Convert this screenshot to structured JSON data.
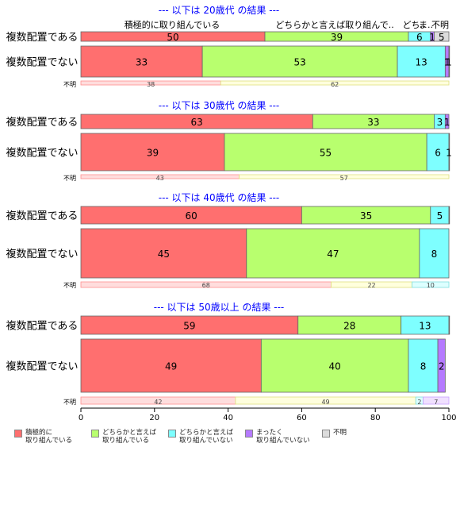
{
  "chart_data": {
    "type": "bar",
    "orientation": "horizontal",
    "stacked": true,
    "xlim": [
      0,
      100
    ],
    "x_ticks": [
      "0",
      "20",
      "40",
      "60",
      "80",
      "100"
    ],
    "legend_position": "bottom",
    "series": [
      {
        "name": "積極的に\n取り組んでいる",
        "color": "#FF6F6F"
      },
      {
        "name": "どちらかと言えば\n取り組んでいる",
        "color": "#B8FF6E"
      },
      {
        "name": "どちらかと言えば\n取り組んでいない",
        "color": "#7EFFFF"
      },
      {
        "name": "まったく\n取り組んでいない",
        "color": "#B57AFF"
      },
      {
        "name": "不明",
        "color": "#DCDCDC"
      }
    ],
    "panels": [
      {
        "title": "--- 以下は 20歳代 の結果 ---",
        "header_labels": [
          "積極的に取り組んでいる",
          "どちらかと言えば取り組んで..",
          "どち..",
          "ま..",
          "不明"
        ],
        "rows": [
          {
            "label": "複数配置である",
            "values": [
              50,
              39,
              6,
              1,
              5
            ],
            "labels": [
              "50",
              "39",
              "6",
              "1",
              "5"
            ]
          },
          {
            "label": "複数配置でない",
            "values": [
              33,
              53,
              13,
              1,
              1
            ],
            "labels": [
              "33",
              "53",
              "13",
              "1",
              "1"
            ]
          }
        ],
        "unknown": {
          "label": "不明",
          "values": [
            38,
            62
          ],
          "labels": [
            "38",
            "62"
          ]
        }
      },
      {
        "title": "--- 以下は 30歳代 の結果 ---",
        "rows": [
          {
            "label": "複数配置である",
            "values": [
              63,
              33,
              3,
              1,
              0
            ],
            "labels": [
              "63",
              "33",
              "3",
              "1",
              ""
            ]
          },
          {
            "label": "複数配置でない",
            "values": [
              39,
              55,
              6,
              1,
              0
            ],
            "labels": [
              "39",
              "55",
              "6",
              "1",
              ""
            ]
          }
        ],
        "unknown": {
          "label": "不明",
          "values": [
            43,
            57
          ],
          "labels": [
            "43",
            "57"
          ]
        }
      },
      {
        "title": "--- 以下は 40歳代 の結果 ---",
        "rows": [
          {
            "label": "複数配置である",
            "values": [
              60,
              35,
              5,
              0.5,
              0
            ],
            "labels": [
              "60",
              "35",
              "5",
              "",
              ""
            ]
          },
          {
            "label": "複数配置でない",
            "values": [
              45,
              47,
              8,
              0,
              0
            ],
            "labels": [
              "45",
              "47",
              "8",
              "",
              ""
            ]
          }
        ],
        "unknown": {
          "label": "不明",
          "values": [
            68,
            22,
            10
          ],
          "labels": [
            "68",
            "22",
            "10"
          ]
        }
      },
      {
        "title": "--- 以下は 50歳以上 の結果 ---",
        "rows": [
          {
            "label": "複数配置である",
            "values": [
              59,
              28,
              13,
              0.5,
              0
            ],
            "labels": [
              "59",
              "28",
              "13",
              "",
              ""
            ]
          },
          {
            "label": "複数配置でない",
            "values": [
              49,
              40,
              8,
              2,
              0
            ],
            "labels": [
              "49",
              "40",
              "8",
              "2",
              ""
            ]
          }
        ],
        "unknown": {
          "label": "不明",
          "values": [
            42,
            49,
            2,
            7
          ],
          "labels": [
            "42",
            "49",
            "2",
            "7"
          ]
        }
      }
    ]
  },
  "colors": {
    "title": "#0000FF",
    "unknown_fills": [
      "#FFDDDD",
      "#FFFFDD",
      "#DDFFFF",
      "#F0E0FF"
    ],
    "unknown_strokes": [
      "#FF8F8F",
      "#E0E080",
      "#80E0E0",
      "#C8A0FF"
    ]
  }
}
